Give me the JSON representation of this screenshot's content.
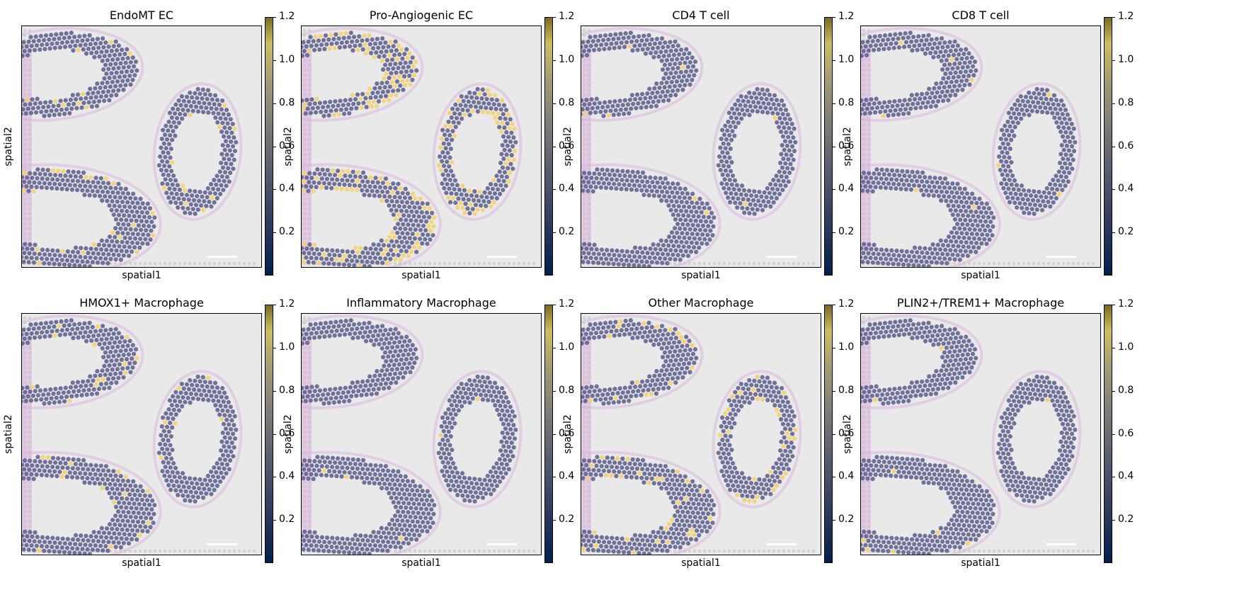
{
  "figure": {
    "panels": [
      {
        "title": "EndoMT EC",
        "xlabel": "spatial1",
        "ylabel": "spatial2",
        "highlight": "low-edges"
      },
      {
        "title": "Pro-Angiogenic EC",
        "xlabel": "spatial1",
        "ylabel": "spatial2",
        "highlight": "high-edges"
      },
      {
        "title": "CD4 T cell",
        "xlabel": "spatial1",
        "ylabel": "spatial2",
        "highlight": "sparse"
      },
      {
        "title": "CD8 T cell",
        "xlabel": "spatial1",
        "ylabel": "spatial2",
        "highlight": "sparse"
      },
      {
        "title": "HMOX1+ Macrophage",
        "xlabel": "spatial1",
        "ylabel": "spatial2",
        "highlight": "low-scattered"
      },
      {
        "title": "Inflammatory Macrophage",
        "xlabel": "spatial1",
        "ylabel": "spatial2",
        "highlight": "sparse"
      },
      {
        "title": "Other Macrophage",
        "xlabel": "spatial1",
        "ylabel": "spatial2",
        "highlight": "medium-edges"
      },
      {
        "title": "PLIN2+/TREM1+ Macrophage",
        "xlabel": "spatial1",
        "ylabel": "spatial2",
        "highlight": "sparse"
      }
    ]
  },
  "chart_data": {
    "type": "scatter",
    "layout": "2x4 grid of spatial maps",
    "colormap": "cividis",
    "colorbar": {
      "min": 0.0,
      "max": 1.2,
      "ticks": [
        0.2,
        0.4,
        0.6,
        0.8,
        1.0,
        1.2
      ]
    },
    "xaxis_label": "spatial1",
    "yaxis_label": "spatial2",
    "axes_ticks": false,
    "colors": {
      "background": "#e9e9e9",
      "tissue": "#d9b3dd",
      "spot_low": "#5e608f",
      "spot_high": "#f4d06a",
      "unused_spot": "#d2d2d2"
    }
  }
}
